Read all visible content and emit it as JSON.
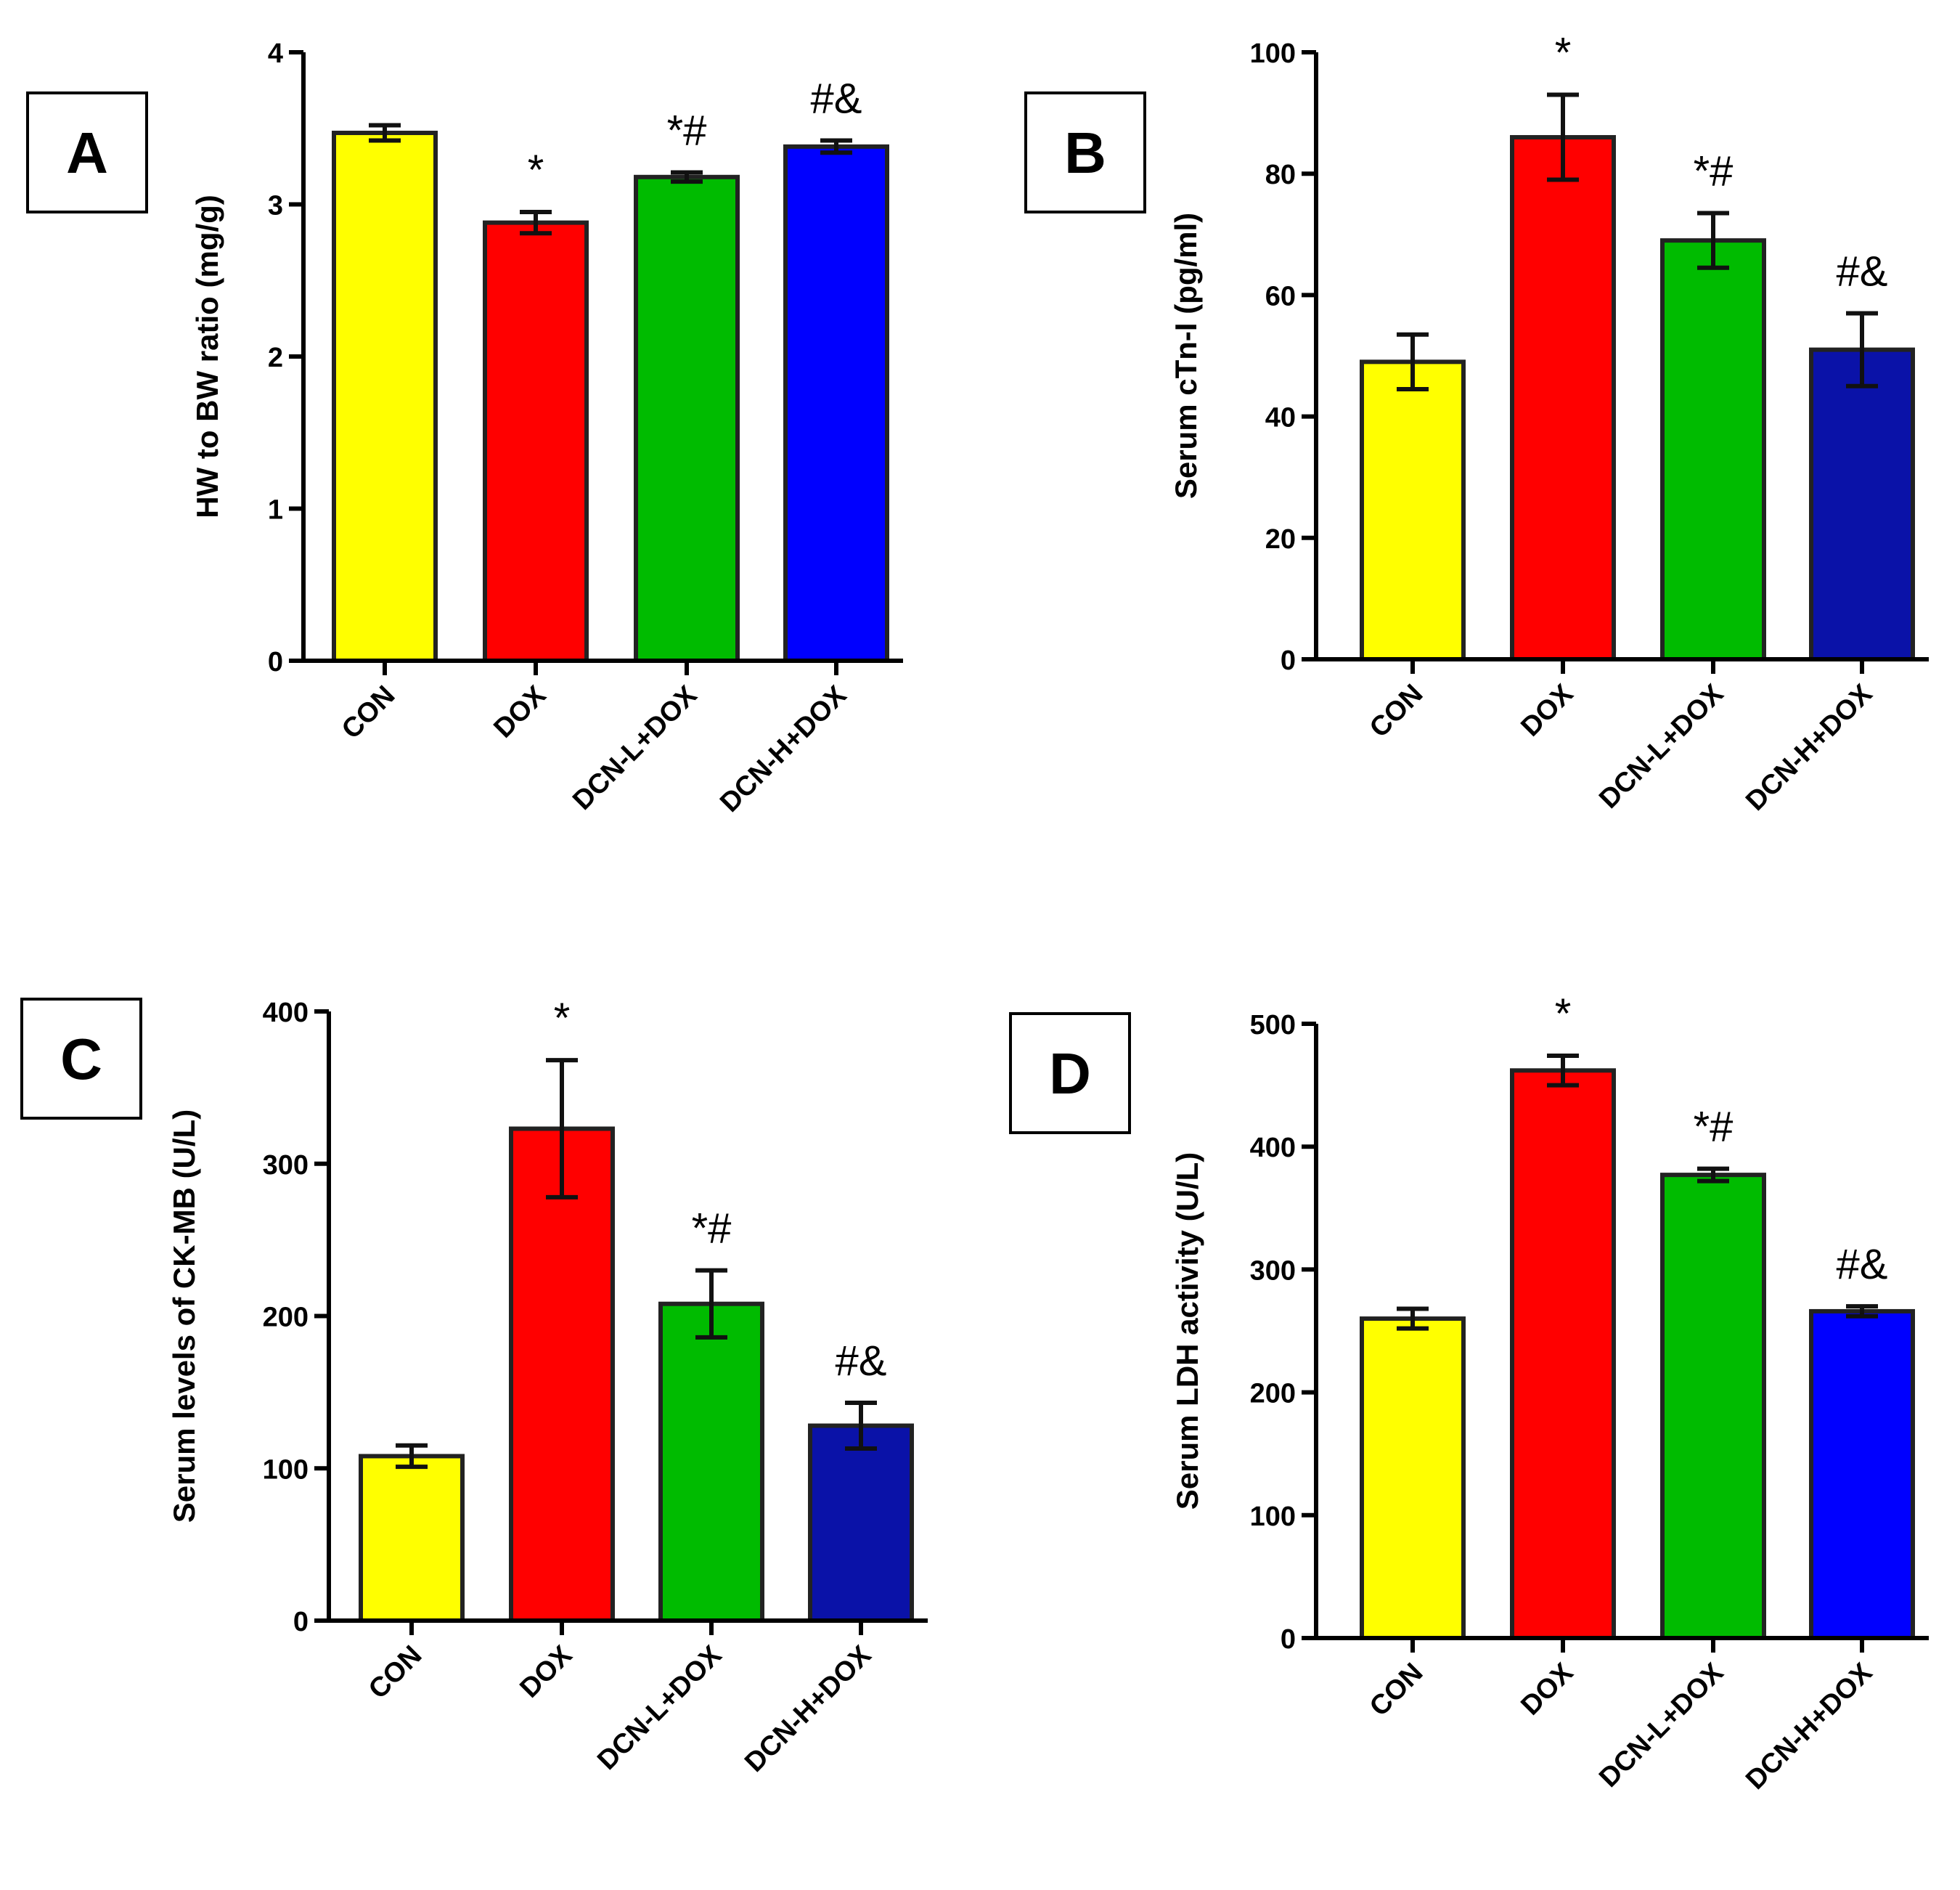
{
  "chart_data": [
    {
      "panel": "A",
      "type": "bar",
      "ylabel": "HW to BW ratio (mg/g)",
      "ylim": [
        0,
        4
      ],
      "yticks": [
        0,
        1,
        2,
        3,
        4
      ],
      "categories": [
        "CON",
        "DOX",
        "DCN-L+DOX",
        "DCN-H+DOX"
      ],
      "values": [
        3.47,
        2.88,
        3.18,
        3.38
      ],
      "errors": [
        0.05,
        0.07,
        0.03,
        0.04
      ],
      "colors": [
        "#ffff00",
        "#ff0000",
        "#00bb00",
        "#0000ff"
      ],
      "annotations": [
        "",
        "*",
        "*#",
        "#&"
      ]
    },
    {
      "panel": "B",
      "type": "bar",
      "ylabel": "Serum cTn-I (pg/ml)",
      "ylim": [
        0,
        100
      ],
      "yticks": [
        0,
        20,
        40,
        60,
        80,
        100
      ],
      "categories": [
        "CON",
        "DOX",
        "DCN-L+DOX",
        "DCN-H+DOX"
      ],
      "values": [
        49,
        86,
        69,
        51
      ],
      "errors": [
        4.5,
        7,
        4.5,
        6
      ],
      "colors": [
        "#ffff00",
        "#ff0000",
        "#00bb00",
        "#0a12a8"
      ],
      "annotations": [
        "",
        "*",
        "*#",
        "#&"
      ]
    },
    {
      "panel": "C",
      "type": "bar",
      "ylabel": "Serum levels of CK-MB (U/L)",
      "ylim": [
        0,
        400
      ],
      "yticks": [
        0,
        100,
        200,
        300,
        400
      ],
      "categories": [
        "CON",
        "DOX",
        "DCN-L+DOX",
        "DCN-H+DOX"
      ],
      "values": [
        108,
        323,
        208,
        128
      ],
      "errors": [
        7,
        45,
        22,
        15
      ],
      "colors": [
        "#ffff00",
        "#ff0000",
        "#00bb00",
        "#0a12a8"
      ],
      "annotations": [
        "",
        "*",
        "*#",
        "#&"
      ]
    },
    {
      "panel": "D",
      "type": "bar",
      "ylabel": "Serum LDH activity (U/L)",
      "ylim": [
        0,
        500
      ],
      "yticks": [
        0,
        100,
        200,
        300,
        400,
        500
      ],
      "categories": [
        "CON",
        "DOX",
        "DCN-L+DOX",
        "DCN-H+DOX"
      ],
      "values": [
        260,
        462,
        377,
        266
      ],
      "errors": [
        8,
        12,
        5,
        4
      ],
      "colors": [
        "#ffff00",
        "#ff0000",
        "#00bb00",
        "#0000ff"
      ],
      "annotations": [
        "",
        "*",
        "*#",
        "#&"
      ]
    }
  ]
}
